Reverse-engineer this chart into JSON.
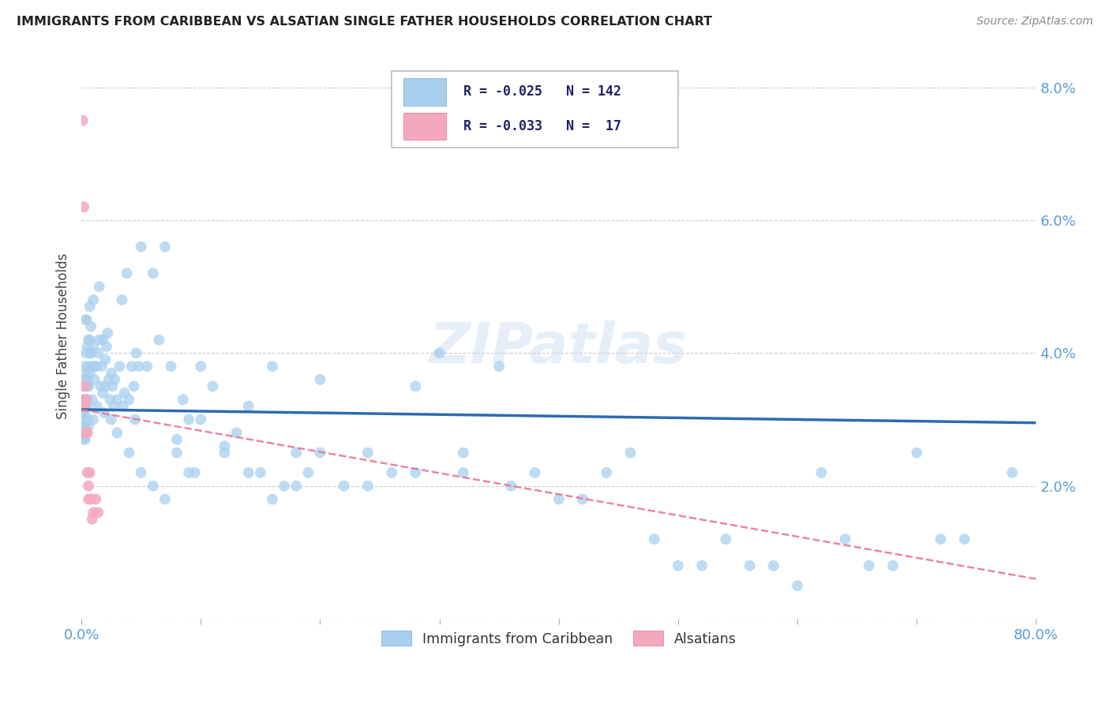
{
  "title": "IMMIGRANTS FROM CARIBBEAN VS ALSATIAN SINGLE FATHER HOUSEHOLDS CORRELATION CHART",
  "source": "Source: ZipAtlas.com",
  "ylabel": "Single Father Households",
  "x_min": 0.0,
  "x_max": 0.8,
  "y_min": 0.0,
  "y_max": 0.085,
  "blue_R": -0.025,
  "blue_N": 142,
  "pink_R": -0.033,
  "pink_N": 17,
  "blue_color": "#A8D0EE",
  "pink_color": "#F4A8BE",
  "trend_blue_color": "#2B6CB0",
  "trend_pink_color": "#E87090",
  "watermark": "ZIPatlas",
  "legend_label_blue": "Immigrants from Caribbean",
  "legend_label_pink": "Alsatians",
  "blue_x": [
    0.001,
    0.001,
    0.001,
    0.001,
    0.002,
    0.002,
    0.002,
    0.002,
    0.002,
    0.003,
    0.003,
    0.003,
    0.003,
    0.003,
    0.003,
    0.004,
    0.004,
    0.004,
    0.004,
    0.004,
    0.005,
    0.005,
    0.005,
    0.005,
    0.006,
    0.006,
    0.006,
    0.007,
    0.007,
    0.008,
    0.008,
    0.009,
    0.009,
    0.01,
    0.01,
    0.011,
    0.012,
    0.013,
    0.014,
    0.015,
    0.016,
    0.017,
    0.018,
    0.019,
    0.02,
    0.021,
    0.022,
    0.023,
    0.024,
    0.025,
    0.026,
    0.027,
    0.028,
    0.03,
    0.032,
    0.034,
    0.036,
    0.038,
    0.04,
    0.042,
    0.044,
    0.046,
    0.048,
    0.05,
    0.055,
    0.06,
    0.065,
    0.07,
    0.075,
    0.08,
    0.085,
    0.09,
    0.095,
    0.1,
    0.11,
    0.12,
    0.13,
    0.14,
    0.15,
    0.16,
    0.17,
    0.18,
    0.19,
    0.2,
    0.22,
    0.24,
    0.26,
    0.28,
    0.3,
    0.32,
    0.35,
    0.38,
    0.42,
    0.46,
    0.5,
    0.54,
    0.58,
    0.62,
    0.66,
    0.7,
    0.74,
    0.78,
    0.003,
    0.004,
    0.005,
    0.006,
    0.007,
    0.008,
    0.01,
    0.012,
    0.015,
    0.018,
    0.02,
    0.025,
    0.03,
    0.035,
    0.04,
    0.045,
    0.05,
    0.06,
    0.07,
    0.08,
    0.09,
    0.1,
    0.12,
    0.14,
    0.16,
    0.18,
    0.2,
    0.24,
    0.28,
    0.32,
    0.36,
    0.4,
    0.44,
    0.48,
    0.52,
    0.56,
    0.6,
    0.64,
    0.68,
    0.72
  ],
  "blue_y": [
    0.03,
    0.028,
    0.033,
    0.031,
    0.029,
    0.032,
    0.035,
    0.028,
    0.027,
    0.033,
    0.031,
    0.036,
    0.029,
    0.038,
    0.027,
    0.04,
    0.037,
    0.032,
    0.045,
    0.028,
    0.033,
    0.041,
    0.036,
    0.03,
    0.038,
    0.035,
    0.029,
    0.042,
    0.037,
    0.04,
    0.044,
    0.033,
    0.038,
    0.041,
    0.03,
    0.036,
    0.038,
    0.032,
    0.04,
    0.042,
    0.035,
    0.038,
    0.034,
    0.031,
    0.039,
    0.041,
    0.043,
    0.036,
    0.033,
    0.037,
    0.035,
    0.032,
    0.036,
    0.033,
    0.038,
    0.048,
    0.034,
    0.052,
    0.033,
    0.038,
    0.035,
    0.04,
    0.038,
    0.056,
    0.038,
    0.052,
    0.042,
    0.056,
    0.038,
    0.027,
    0.033,
    0.03,
    0.022,
    0.038,
    0.035,
    0.026,
    0.028,
    0.032,
    0.022,
    0.038,
    0.02,
    0.025,
    0.022,
    0.036,
    0.02,
    0.025,
    0.022,
    0.035,
    0.04,
    0.022,
    0.038,
    0.022,
    0.018,
    0.025,
    0.008,
    0.012,
    0.008,
    0.022,
    0.008,
    0.025,
    0.012,
    0.022,
    0.032,
    0.045,
    0.035,
    0.042,
    0.047,
    0.04,
    0.048,
    0.038,
    0.05,
    0.042,
    0.035,
    0.03,
    0.028,
    0.032,
    0.025,
    0.03,
    0.022,
    0.02,
    0.018,
    0.025,
    0.022,
    0.03,
    0.025,
    0.022,
    0.018,
    0.02,
    0.025,
    0.02,
    0.022,
    0.025,
    0.02,
    0.018,
    0.022,
    0.012,
    0.008,
    0.008,
    0.005,
    0.012,
    0.008,
    0.012
  ],
  "pink_x": [
    0.001,
    0.002,
    0.002,
    0.003,
    0.003,
    0.004,
    0.004,
    0.005,
    0.005,
    0.006,
    0.006,
    0.007,
    0.008,
    0.009,
    0.01,
    0.012,
    0.014
  ],
  "pink_y": [
    0.075,
    0.062,
    0.033,
    0.035,
    0.032,
    0.033,
    0.028,
    0.028,
    0.022,
    0.02,
    0.018,
    0.022,
    0.018,
    0.015,
    0.016,
    0.018,
    0.016
  ],
  "blue_trend_x0": 0.0,
  "blue_trend_x1": 0.8,
  "blue_trend_y0": 0.0315,
  "blue_trend_y1": 0.0295,
  "pink_trend_x0": 0.0,
  "pink_trend_x1": 0.8,
  "pink_trend_y0": 0.0315,
  "pink_trend_y1": 0.006
}
